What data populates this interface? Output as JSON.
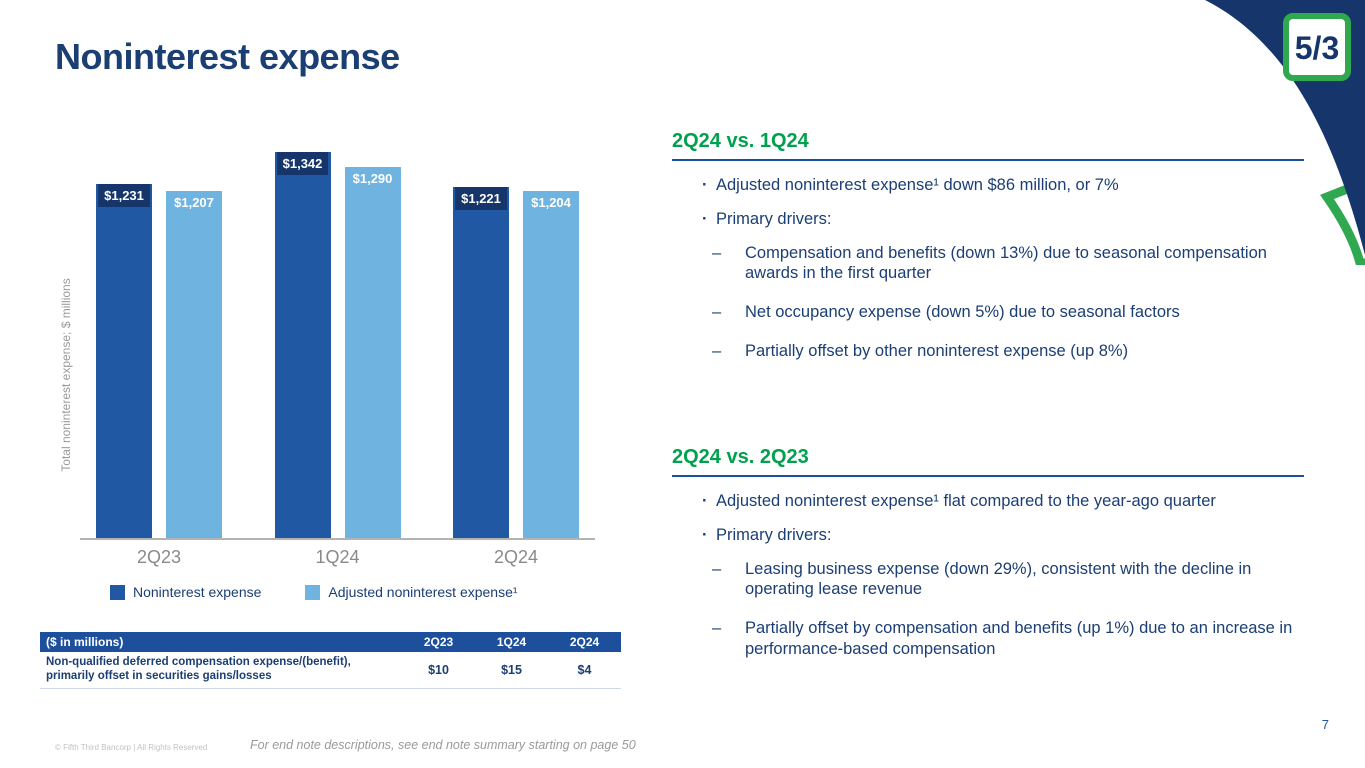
{
  "slide": {
    "title": "Noninterest expense",
    "page_number": "7"
  },
  "logo": {
    "text": "5/3"
  },
  "colors": {
    "navy": "#16366B",
    "blue": "#1D4F9C",
    "green": "#00A14E",
    "logo_green": "#2FA84F",
    "dark_bar": "#2158A4",
    "light_bar": "#6FB3E0"
  },
  "chart_data": {
    "type": "bar",
    "categories": [
      "2Q23",
      "1Q24",
      "2Q24"
    ],
    "series": [
      {
        "name": "Noninterest expense",
        "values": [
          1231,
          1342,
          1221
        ],
        "labels": [
          "$1,231",
          "$1,342",
          "$1,221"
        ],
        "color": "#2158A4"
      },
      {
        "name": "Adjusted noninterest expense¹",
        "values": [
          1207,
          1290,
          1204
        ],
        "labels": [
          "$1,207",
          "$1,290",
          "$1,204"
        ],
        "color": "#6FB3E0"
      }
    ],
    "title": "",
    "xlabel": "",
    "ylabel": "Total noninterest expense; $ millions",
    "ylim": [
      0,
      1400
    ],
    "grid": false,
    "legend_position": "bottom"
  },
  "table": {
    "header": [
      "($ in millions)",
      "2Q23",
      "1Q24",
      "2Q24"
    ],
    "rows": [
      {
        "label": "Non-qualified deferred compensation expense/(benefit), primarily offset in securities gains/losses",
        "values": [
          "$10",
          "$15",
          "$4"
        ]
      }
    ]
  },
  "sections": [
    {
      "heading": "2Q24 vs. 1Q24",
      "bullets": [
        {
          "level": 1,
          "text": "Adjusted noninterest expense¹ down $86 million, or 7%"
        },
        {
          "level": 1,
          "text": "Primary drivers:"
        },
        {
          "level": 2,
          "text": "Compensation and benefits (down 13%) due to seasonal compensation awards in the first quarter"
        },
        {
          "level": 2,
          "text": "Net occupancy expense (down 5%) due to seasonal factors"
        },
        {
          "level": 2,
          "text": "Partially offset by other noninterest expense (up 8%)"
        }
      ]
    },
    {
      "heading": "2Q24 vs. 2Q23",
      "bullets": [
        {
          "level": 1,
          "text": "Adjusted noninterest expense¹ flat compared to the year-ago quarter"
        },
        {
          "level": 1,
          "text": "Primary drivers:"
        },
        {
          "level": 2,
          "text": "Leasing business expense (down 29%), consistent with the decline in operating lease revenue"
        },
        {
          "level": 2,
          "text": "Partially offset by compensation and benefits (up 1%) due to an increase in performance-based compensation"
        }
      ]
    }
  ],
  "footer": {
    "copyright": "© Fifth Third Bancorp | All Rights Reserved",
    "endnote": "For end note descriptions, see end note summary starting on page 50"
  }
}
